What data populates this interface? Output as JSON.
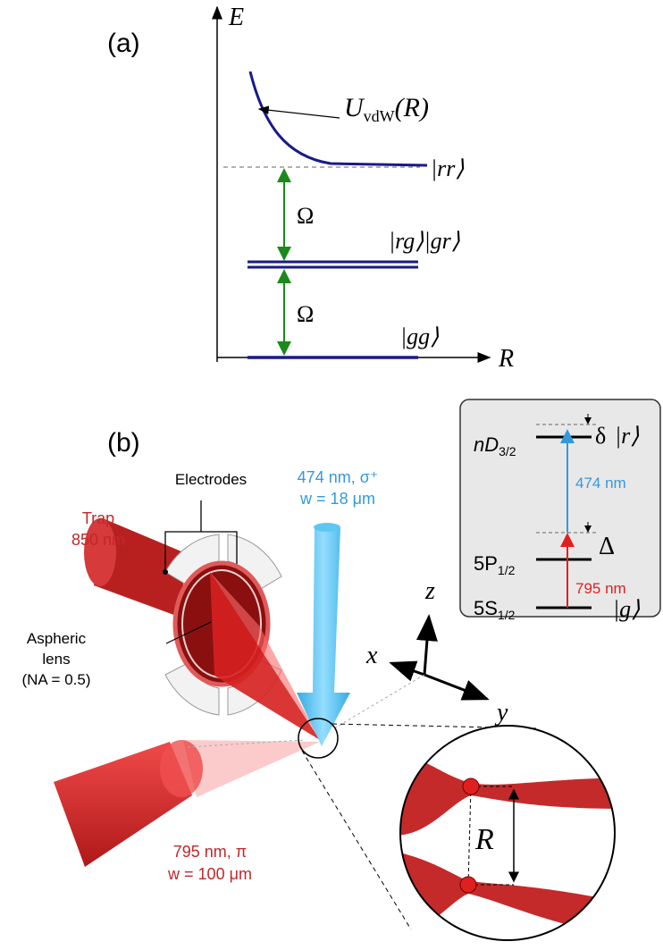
{
  "panel_a": {
    "label": "(a)",
    "y_axis": "E",
    "x_axis": "R",
    "potential": {
      "symbol": "U",
      "subscript": "vdW",
      "argument": "(R)"
    },
    "state_rr": "|rr⟩",
    "state_rg_gr": "|rg⟩|gr⟩",
    "state_gg": "|gg⟩",
    "coupling_upper": "Ω",
    "coupling_lower": "Ω"
  },
  "panel_b": {
    "label": "(b)",
    "electrodes": "Electrodes",
    "blue_beam": [
      "474 nm, σ⁺",
      "w = 18 μm"
    ],
    "trap": [
      "Trap",
      "850 nm"
    ],
    "lens": [
      "Aspheric",
      "lens",
      "(NA = 0.5)"
    ],
    "red_beam": [
      "795 nm, π",
      "w = 100 μm"
    ],
    "axes": {
      "x": "x",
      "y": "y",
      "z": "z"
    },
    "zoom_label": "R",
    "level_scheme": {
      "nd": {
        "main": "nD",
        "sub": "3/2"
      },
      "delta": "δ",
      "rydberg": "|r⟩",
      "blue": "474 nm",
      "Delta": "Δ",
      "p": {
        "main": "5P",
        "sub": "1/2"
      },
      "red": "795 nm",
      "s": {
        "main": "5S",
        "sub": "1/2"
      },
      "ground": "|g⟩"
    }
  }
}
